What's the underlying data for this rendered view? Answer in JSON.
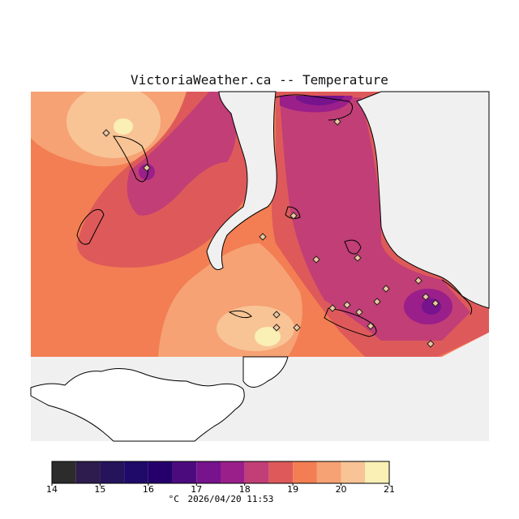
{
  "title": "VictoriaWeather.ca -- Temperature",
  "map": {
    "color_scale": [
      "#2c2c2c",
      "#2d1c4d",
      "#25135c",
      "#1f0a6a",
      "#25006c",
      "#4c0b7d",
      "#76138d",
      "#9a1f8a",
      "#c13e76",
      "#de5a5a",
      "#f37e53",
      "#f6a274",
      "#f8c495",
      "#faefb4"
    ],
    "land_outside_color": "#ffffff",
    "water_color": "#f0f0f0",
    "station_marker": "diamond-icon"
  },
  "legend": {
    "ticks": [
      "14",
      "15",
      "16",
      "17",
      "18",
      "19",
      "20",
      "21"
    ],
    "unit": "°C",
    "timestamp": "2026/04/20 11:53"
  }
}
